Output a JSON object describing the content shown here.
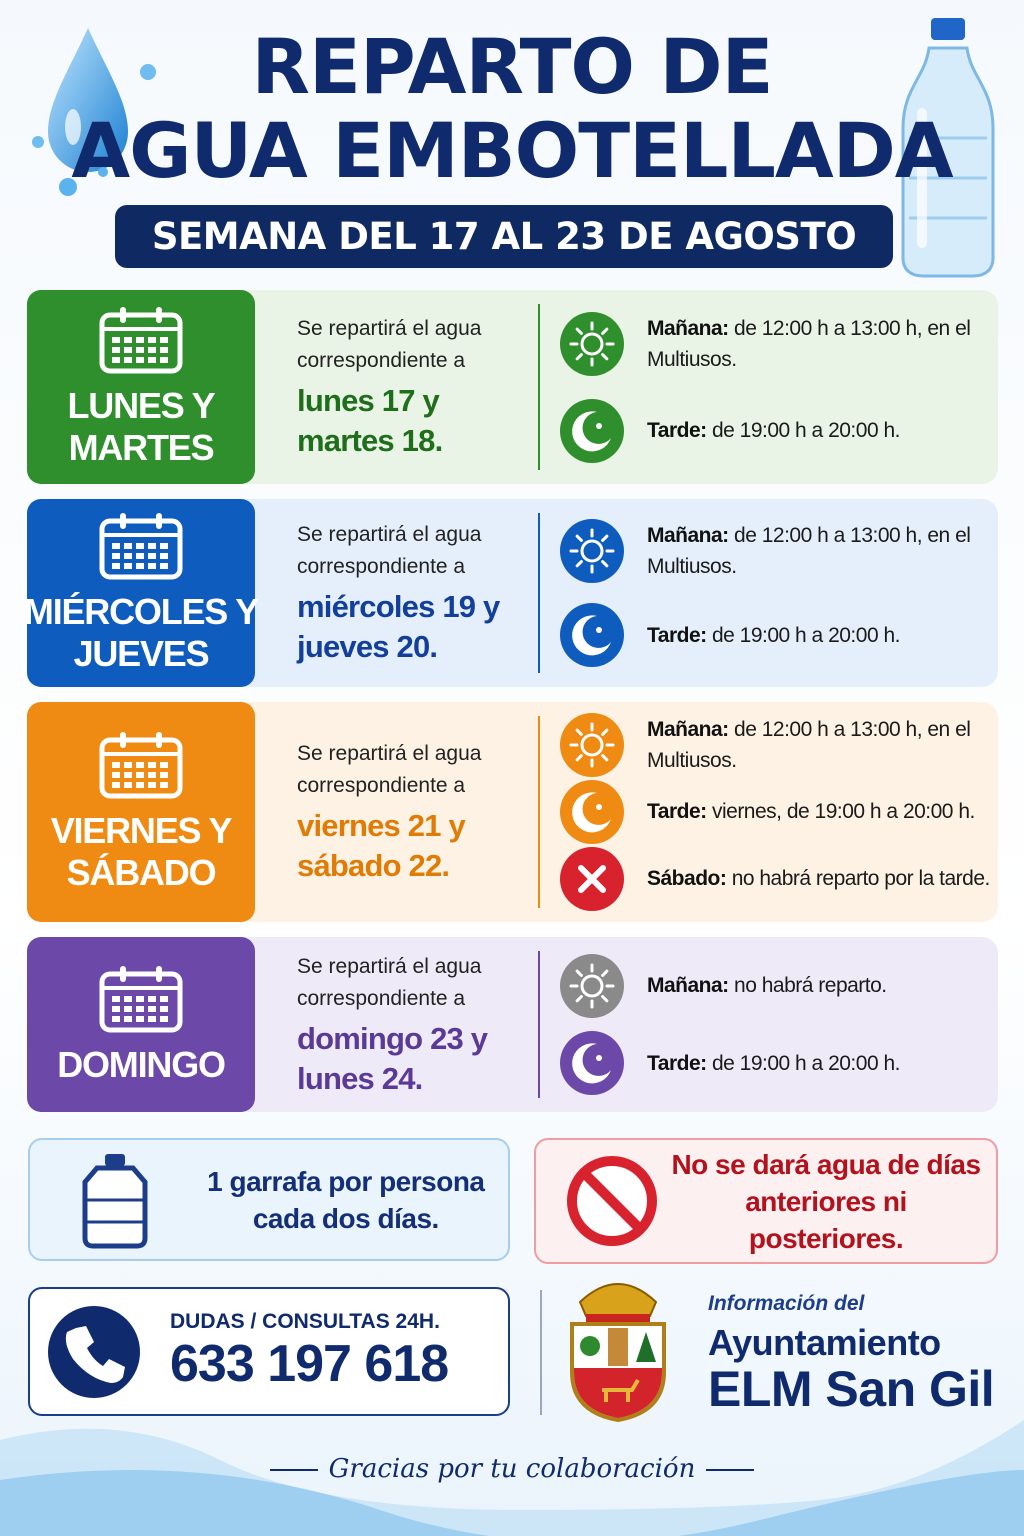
{
  "header": {
    "title_line1": "REPARTO DE",
    "title_line2": "AGUA EMBOTELLADA",
    "subtitle": "SEMANA DEL 17 AL 23 DE AGOSTO"
  },
  "days": [
    {
      "label": [
        "LUNES Y",
        "MARTES"
      ],
      "intro": "Se repartirá el agua correspondiente a",
      "highlight": "lunes 17 y martes 18.",
      "slots": [
        {
          "label": "Mañana:",
          "text": "de 12:00 h a 13:00 h, en el Multiusos."
        },
        {
          "label": "Tarde:",
          "text": "de 19:00 h a 20:00 h."
        }
      ]
    },
    {
      "label": [
        "MIÉRCOLES Y",
        "JUEVES"
      ],
      "intro": "Se repartirá el agua correspondiente a",
      "highlight": "miércoles 19 y jueves 20.",
      "slots": [
        {
          "label": "Mañana:",
          "text": "de 12:00 h a 13:00 h, en el Multiusos."
        },
        {
          "label": "Tarde:",
          "text": "de 19:00 h a 20:00 h."
        }
      ]
    },
    {
      "label": [
        "VIERNES Y",
        "SÁBADO"
      ],
      "intro": "Se repartirá el agua correspondiente a",
      "highlight": "viernes 21 y sábado 22.",
      "slots": [
        {
          "label": "Mañana:",
          "text": "de 12:00 h a 13:00 h, en el Multiusos."
        },
        {
          "label": "Tarde:",
          "text": "viernes, de 19:00 h a 20:00 h."
        },
        {
          "label": "Sábado:",
          "text": "no habrá reparto por la tarde."
        }
      ]
    },
    {
      "label": [
        "DOMINGO"
      ],
      "intro": "Se repartirá el agua correspondiente a",
      "highlight": "domingo 23 y lunes 24.",
      "slots": [
        {
          "label": "Mañana:",
          "text": "no habrá reparto."
        },
        {
          "label": "Tarde:",
          "text": "de 19:00 h a 20:00 h."
        }
      ]
    }
  ],
  "notices": {
    "allowance": "1 garrafa por persona cada dos días.",
    "restriction": "No se dará agua de días anteriores ni posteriores."
  },
  "contact": {
    "label": "DUDAS / CONSULTAS 24H.",
    "phone": "633 197 618"
  },
  "organization": {
    "intro": "Información del",
    "name_line1": "Ayuntamiento",
    "name_line2": "ELM San Gil"
  },
  "footer": {
    "thanks": "Gracias por tu colaboración"
  }
}
